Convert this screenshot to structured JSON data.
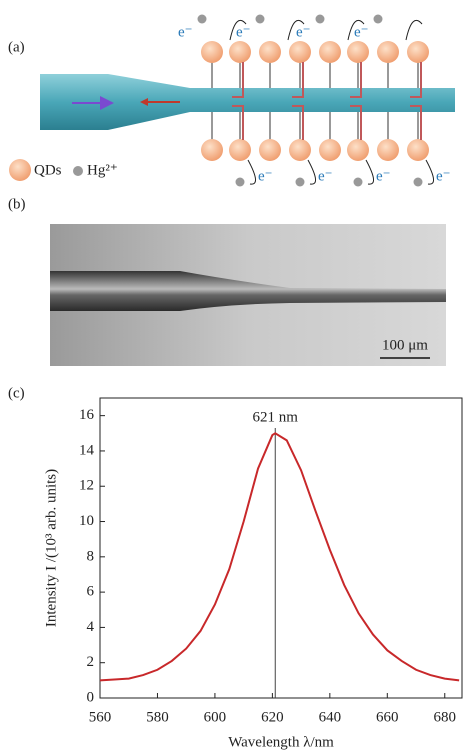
{
  "panel_a": {
    "label": "(a)",
    "electron": "e⁻",
    "legend": {
      "qds": "QDs",
      "hg": "Hg²⁺"
    }
  },
  "panel_b": {
    "label": "(b)",
    "scale_bar": "100 μm"
  },
  "chart_data": {
    "type": "line",
    "panel_label": "(c)",
    "xlabel": "Wavelength λ/nm",
    "ylabel": "Intensity I /(10³ arb. units)",
    "annotation": {
      "x": 621,
      "text": "621 nm"
    },
    "x": [
      560,
      565,
      570,
      575,
      580,
      585,
      590,
      595,
      600,
      605,
      610,
      615,
      620,
      621,
      625,
      630,
      635,
      640,
      645,
      650,
      655,
      660,
      665,
      670,
      675,
      680,
      685
    ],
    "series": [
      {
        "color": "#c8282a",
        "values": [
          1.0,
          1.05,
          1.1,
          1.3,
          1.6,
          2.1,
          2.8,
          3.8,
          5.3,
          7.3,
          10.0,
          13.0,
          14.9,
          15.0,
          14.6,
          12.9,
          10.6,
          8.4,
          6.4,
          4.8,
          3.6,
          2.7,
          2.1,
          1.6,
          1.3,
          1.1,
          1.0
        ]
      }
    ],
    "xlim": [
      560,
      686
    ],
    "xticks": [
      560,
      580,
      600,
      620,
      640,
      660,
      680
    ],
    "ylim": [
      0,
      17
    ],
    "yticks": [
      0,
      2,
      4,
      6,
      8,
      10,
      12,
      14,
      16
    ]
  }
}
